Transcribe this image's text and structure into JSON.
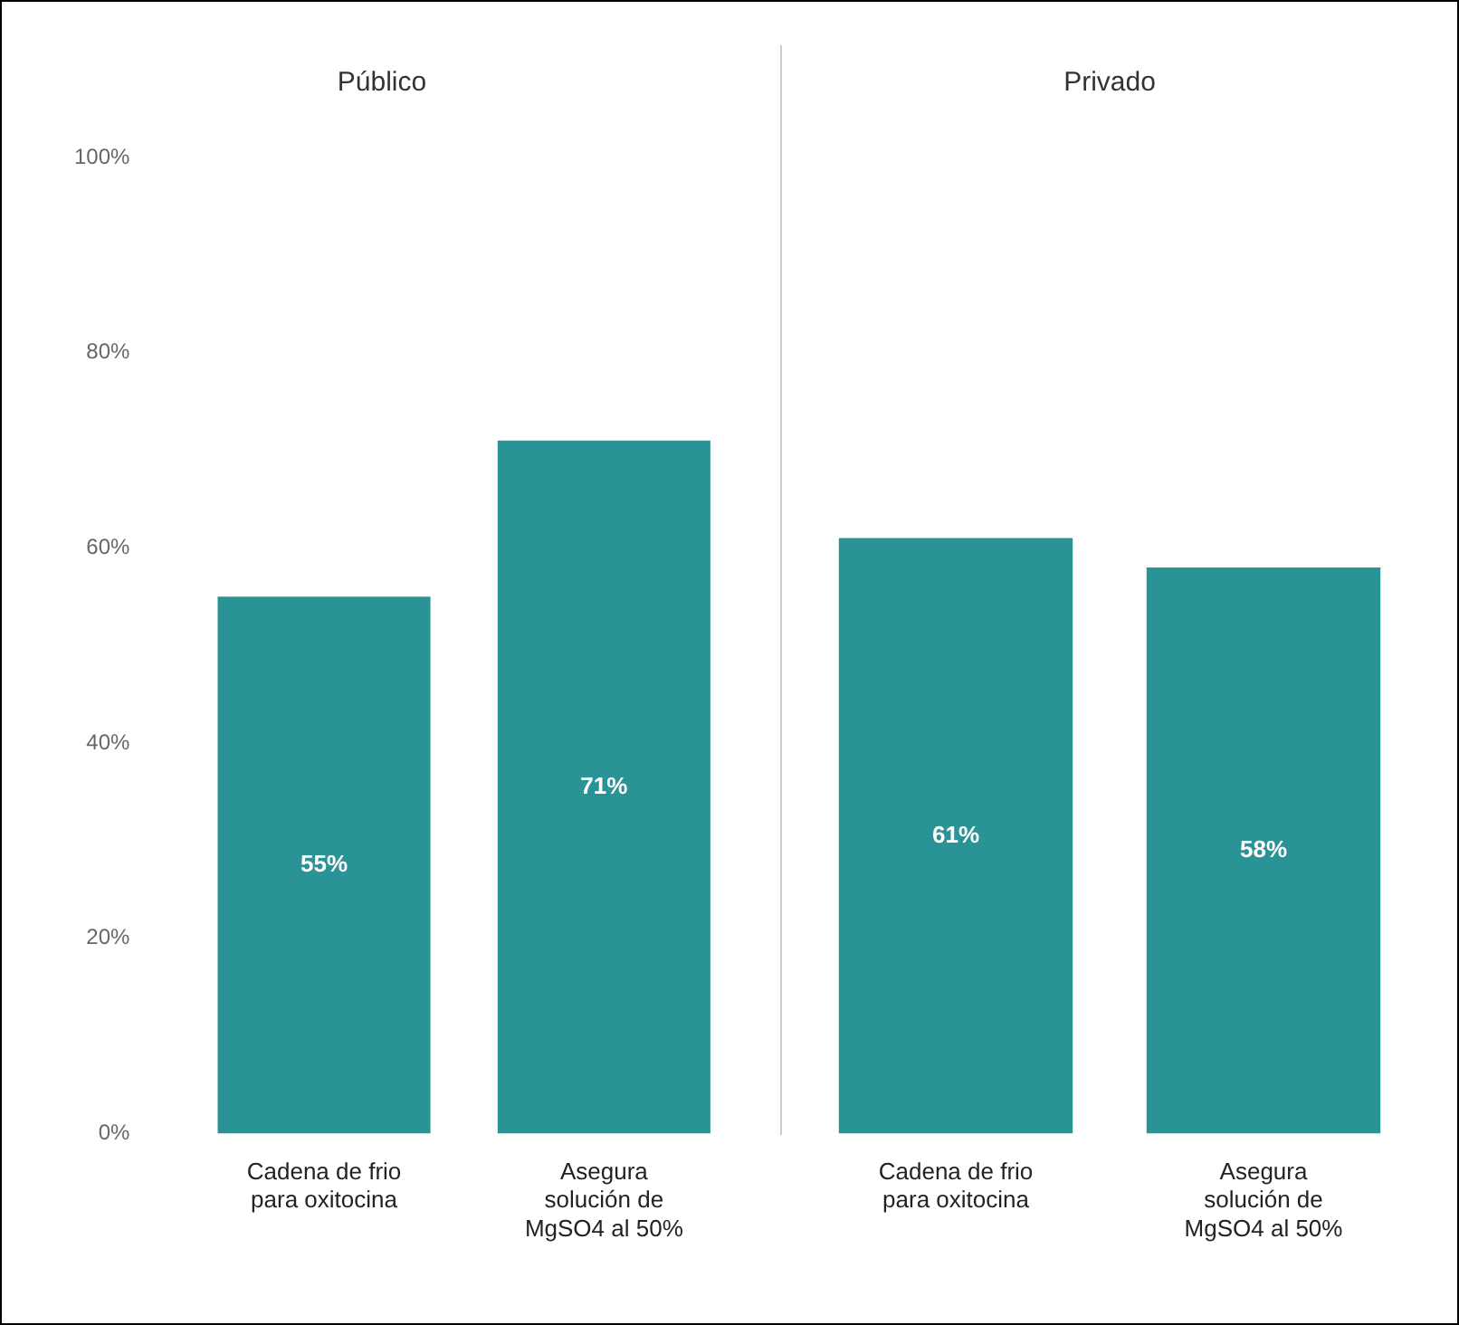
{
  "chart_data": [
    {
      "type": "bar",
      "title": "Público",
      "categories": [
        "Cadena de frio para oxitocina",
        "Asegura solución de MgSO4 al 50%"
      ],
      "values": [
        55,
        71
      ],
      "value_labels": [
        "55%",
        "71%"
      ],
      "color": "#2a9396",
      "ylim": [
        0,
        100
      ],
      "yticks": [
        {
          "value": 0,
          "label": "0%"
        },
        {
          "value": 20,
          "label": "20%"
        },
        {
          "value": 40,
          "label": "40%"
        },
        {
          "value": 60,
          "label": "60%"
        },
        {
          "value": 80,
          "label": "80%"
        },
        {
          "value": 100,
          "label": "100%"
        }
      ],
      "grid": false,
      "legend": false
    },
    {
      "type": "bar",
      "title": "Privado",
      "categories": [
        "Cadena de frio para oxitocina",
        "Asegura solución de MgSO4 al 50%"
      ],
      "values": [
        61,
        58
      ],
      "value_labels": [
        "61%",
        "58%"
      ],
      "color": "#2a9396",
      "ylim": [
        0,
        100
      ],
      "yticks": [
        {
          "value": 0,
          "label": null
        },
        {
          "value": 20,
          "label": null
        },
        {
          "value": 40,
          "label": null
        },
        {
          "value": 60,
          "label": null
        },
        {
          "value": 80,
          "label": null
        },
        {
          "value": 100,
          "label": null
        }
      ],
      "grid": false,
      "legend": false,
      "tick_labels": "x"
    }
  ]
}
